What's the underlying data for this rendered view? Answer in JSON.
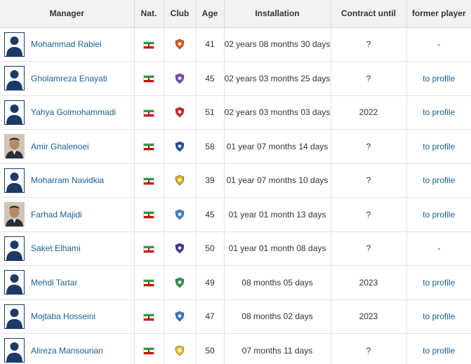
{
  "headers": {
    "manager": "Manager",
    "nat": "Nat.",
    "club": "Club",
    "age": "Age",
    "installation": "Installation",
    "contract": "Contract until",
    "former": "former player"
  },
  "rows": [
    {
      "name": "Mohammad Rabiei",
      "age": "41",
      "installation": "02 years 08 months 30 days",
      "contract": "?",
      "former": "-",
      "avatar": "silhouette",
      "crest_color": "#e8541a"
    },
    {
      "name": "Gholamreza Enayati",
      "age": "45",
      "installation": "02 years 03 months 25 days",
      "contract": "?",
      "former": "to profile",
      "avatar": "silhouette",
      "crest_color": "#7a4bb8"
    },
    {
      "name": "Yahya Golmohammadi",
      "age": "51",
      "installation": "02 years 03 months 03 days",
      "contract": "2022",
      "former": "to profile",
      "avatar": "silhouette",
      "crest_color": "#d8262d"
    },
    {
      "name": "Amir Ghalenoei",
      "age": "58",
      "installation": "01 year 07 months 14 days",
      "contract": "?",
      "former": "to profile",
      "avatar": "photo",
      "crest_color": "#1f4fa3"
    },
    {
      "name": "Moharram Navidkia",
      "age": "39",
      "installation": "01 year 07 months 10 days",
      "contract": "?",
      "former": "to profile",
      "avatar": "silhouette",
      "crest_color": "#e5b415"
    },
    {
      "name": "Farhad Majidi",
      "age": "45",
      "installation": "01 year 01 month 13 days",
      "contract": "?",
      "former": "to profile",
      "avatar": "photo",
      "crest_color": "#3a86c8"
    },
    {
      "name": "Saket Elhami",
      "age": "50",
      "installation": "01 year 01 month 08 days",
      "contract": "?",
      "former": "-",
      "avatar": "silhouette",
      "crest_color": "#3b3b8f"
    },
    {
      "name": "Mehdi Tartar",
      "age": "49",
      "installation": "08 months 05 days",
      "contract": "2023",
      "former": "to profile",
      "avatar": "silhouette",
      "crest_color": "#2a9a48"
    },
    {
      "name": "Mojtaba Hosseini",
      "age": "47",
      "installation": "08 months 02 days",
      "contract": "2023",
      "former": "to profile",
      "avatar": "silhouette",
      "crest_color": "#3a78c2"
    },
    {
      "name": "Alireza Mansourian",
      "age": "50",
      "installation": "07 months 11 days",
      "contract": "?",
      "former": "to profile",
      "avatar": "silhouette",
      "crest_color": "#f2c91a"
    }
  ],
  "colors": {
    "link": "#1a5f91",
    "header_bg": "#f2f2f2",
    "border": "#e3e3e3",
    "silhouette_bg": "#1c3a66"
  },
  "icons": {
    "flag": "iran-flag-icon",
    "avatar_placeholder": "manager-silhouette-icon"
  }
}
